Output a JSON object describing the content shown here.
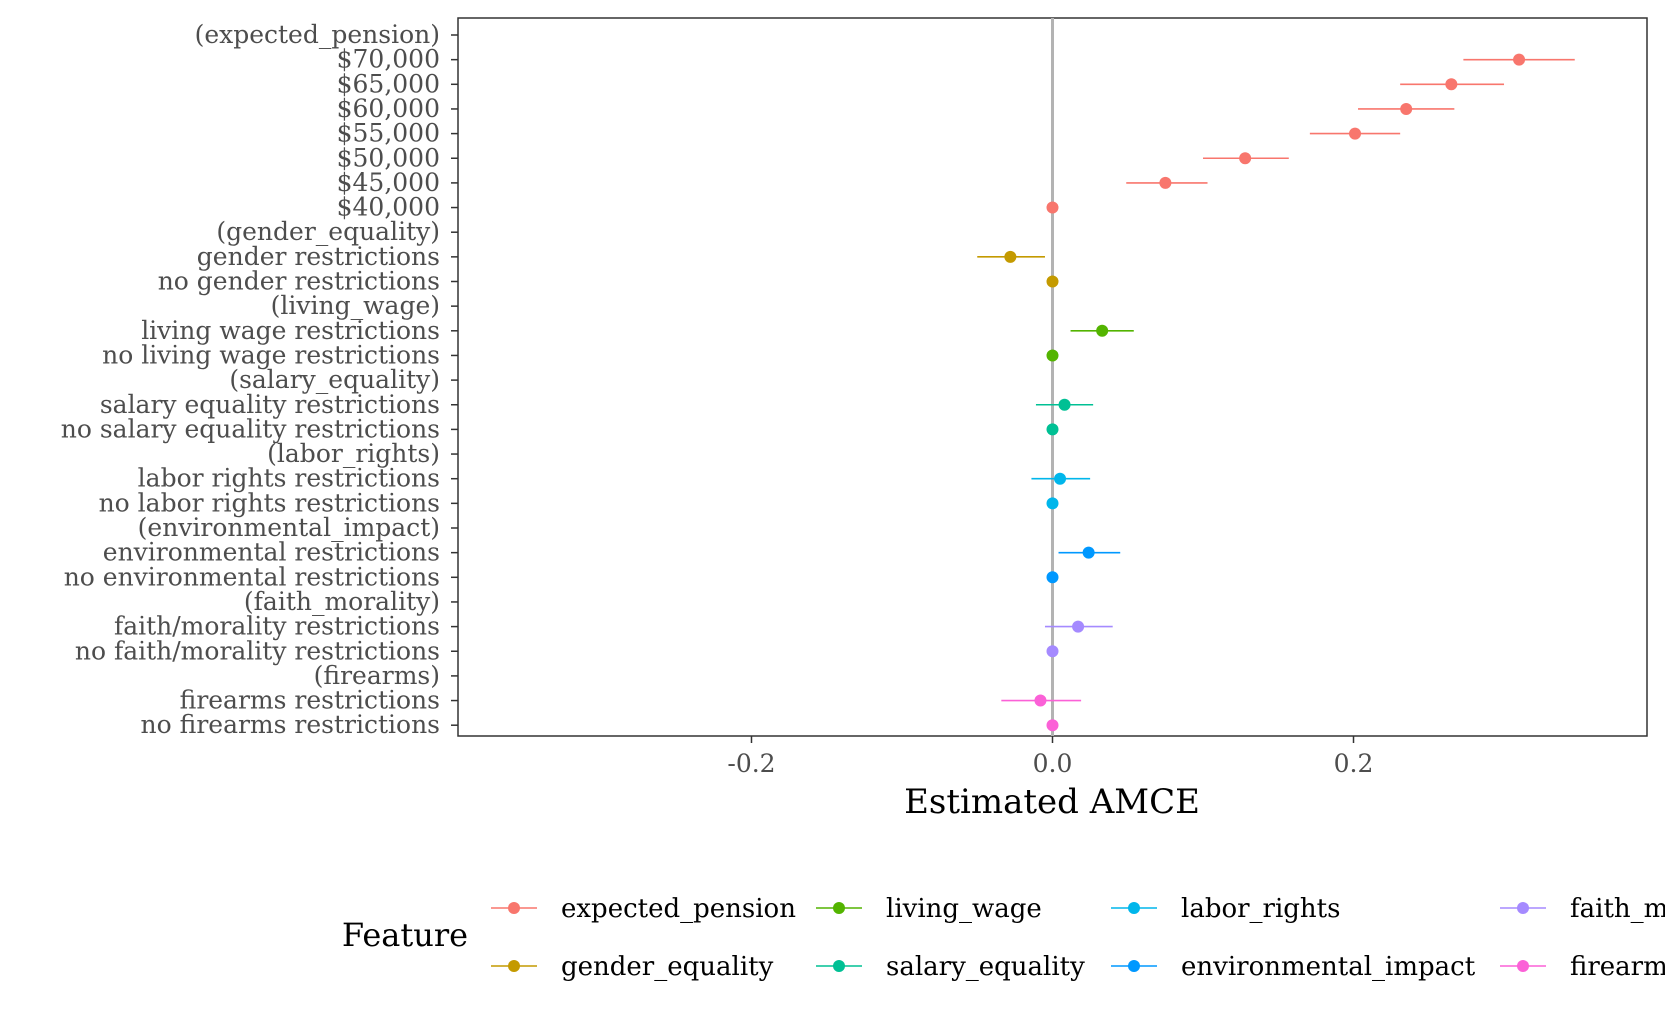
{
  "chart_data": {
    "type": "scatter",
    "subtype": "coefficient-plot",
    "xlabel": "Estimated AMCE",
    "x_ticks": [
      "-0.2",
      "0.0",
      "0.2"
    ],
    "xlim": [
      -0.395,
      0.395
    ],
    "reference_line": 0.0,
    "grid": false,
    "legend": {
      "title": "Feature",
      "placement": "bottom",
      "entries": [
        {
          "label": "expected_pension",
          "color": "#F8766D"
        },
        {
          "label": "gender_equality",
          "color": "#C49A00"
        },
        {
          "label": "living_wage",
          "color": "#53B400"
        },
        {
          "label": "salary_equality",
          "color": "#00C094"
        },
        {
          "label": "labor_rights",
          "color": "#00B6EB"
        },
        {
          "label": "environmental_impact",
          "color": "#0098FF"
        },
        {
          "label": "faith_morality",
          "color": "#A58AFF"
        },
        {
          "label": "firearms",
          "color": "#FB61D7"
        }
      ]
    },
    "rows": [
      {
        "label": "(expected_pension)",
        "feature": "expected_pension",
        "header": true
      },
      {
        "label": "$70,000",
        "feature": "expected_pension",
        "estimate": 0.31,
        "lower": 0.273,
        "upper": 0.347
      },
      {
        "label": "$65,000",
        "feature": "expected_pension",
        "estimate": 0.265,
        "lower": 0.231,
        "upper": 0.3
      },
      {
        "label": "$60,000",
        "feature": "expected_pension",
        "estimate": 0.235,
        "lower": 0.203,
        "upper": 0.267
      },
      {
        "label": "$55,000",
        "feature": "expected_pension",
        "estimate": 0.201,
        "lower": 0.171,
        "upper": 0.231
      },
      {
        "label": "$50,000",
        "feature": "expected_pension",
        "estimate": 0.128,
        "lower": 0.1,
        "upper": 0.157
      },
      {
        "label": "$45,000",
        "feature": "expected_pension",
        "estimate": 0.075,
        "lower": 0.049,
        "upper": 0.103
      },
      {
        "label": "$40,000",
        "feature": "expected_pension",
        "estimate": 0.0
      },
      {
        "label": "(gender_equality)",
        "feature": "gender_equality",
        "header": true
      },
      {
        "label": "gender restrictions",
        "feature": "gender_equality",
        "estimate": -0.028,
        "lower": -0.05,
        "upper": -0.005
      },
      {
        "label": "no gender restrictions",
        "feature": "gender_equality",
        "estimate": 0.0
      },
      {
        "label": "(living_wage)",
        "feature": "living_wage",
        "header": true
      },
      {
        "label": "living wage restrictions",
        "feature": "living_wage",
        "estimate": 0.033,
        "lower": 0.012,
        "upper": 0.054
      },
      {
        "label": "no living wage restrictions",
        "feature": "living_wage",
        "estimate": 0.0
      },
      {
        "label": "(salary_equality)",
        "feature": "salary_equality",
        "header": true
      },
      {
        "label": "salary equality restrictions",
        "feature": "salary_equality",
        "estimate": 0.008,
        "lower": -0.011,
        "upper": 0.027
      },
      {
        "label": "no salary equality restrictions",
        "feature": "salary_equality",
        "estimate": 0.0
      },
      {
        "label": "(labor_rights)",
        "feature": "labor_rights",
        "header": true
      },
      {
        "label": "labor rights restrictions",
        "feature": "labor_rights",
        "estimate": 0.005,
        "lower": -0.014,
        "upper": 0.025
      },
      {
        "label": "no labor rights restrictions",
        "feature": "labor_rights",
        "estimate": 0.0
      },
      {
        "label": "(environmental_impact)",
        "feature": "environmental_impact",
        "header": true
      },
      {
        "label": "environmental restrictions",
        "feature": "environmental_impact",
        "estimate": 0.024,
        "lower": 0.004,
        "upper": 0.045
      },
      {
        "label": "no environmental restrictions",
        "feature": "environmental_impact",
        "estimate": 0.0
      },
      {
        "label": "(faith_morality)",
        "feature": "faith_morality",
        "header": true
      },
      {
        "label": "faith/morality restrictions",
        "feature": "faith_morality",
        "estimate": 0.017,
        "lower": -0.005,
        "upper": 0.04
      },
      {
        "label": "no faith/morality restrictions",
        "feature": "faith_morality",
        "estimate": 0.0
      },
      {
        "label": "(firearms)",
        "feature": "firearms",
        "header": true
      },
      {
        "label": "firearms restrictions",
        "feature": "firearms",
        "estimate": -0.008,
        "lower": -0.034,
        "upper": 0.019
      },
      {
        "label": "no firearms restrictions",
        "feature": "firearms",
        "estimate": 0.0
      }
    ]
  }
}
